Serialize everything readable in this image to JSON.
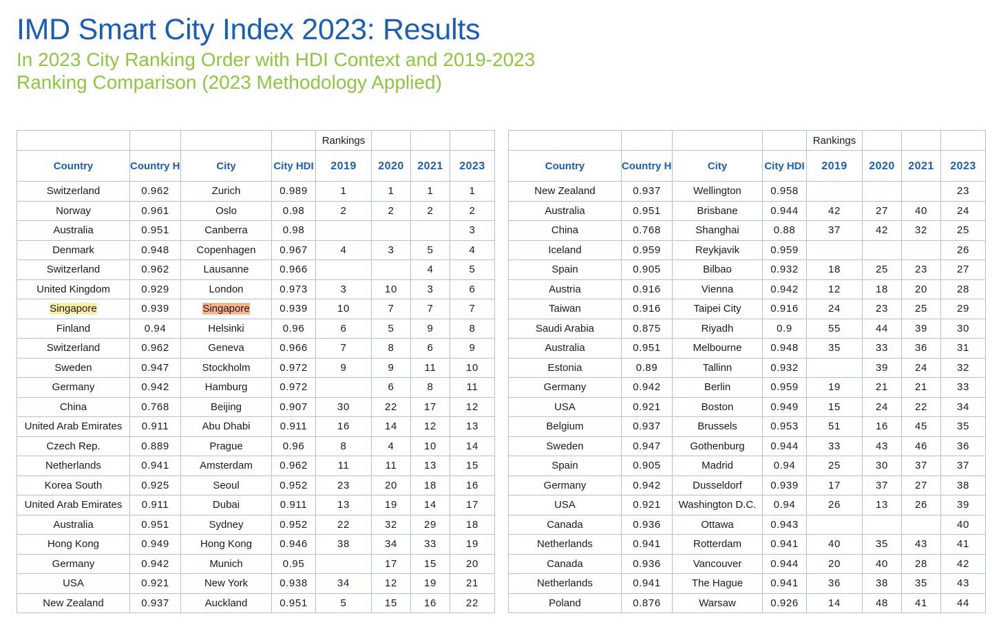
{
  "title": "IMD Smart City Index 2023: Results",
  "subtitle": "In 2023 City Ranking Order with HDI Context and 2019-2023 Ranking Comparison (2023 Methodology Applied)",
  "headers": {
    "rankings": "Rankings",
    "country": "Country",
    "country_hdi": "Country HDI",
    "city": "City",
    "city_hdi": "City HDI",
    "y2019": "2019",
    "y2020": "2020",
    "y2021": "2021",
    "y2023": "2023"
  },
  "highlight_colors": {
    "country": "#fbeea6",
    "city": "#f6b38c"
  },
  "left_rows": [
    {
      "country": "Switzerland",
      "country_hdi": "0.962",
      "city": "Zurich",
      "city_hdi": "0.989",
      "r2019": "1",
      "r2020": "1",
      "r2021": "1",
      "r2023": "1"
    },
    {
      "country": "Norway",
      "country_hdi": "0.961",
      "city": "Oslo",
      "city_hdi": "0.98",
      "r2019": "2",
      "r2020": "2",
      "r2021": "2",
      "r2023": "2"
    },
    {
      "country": "Australia",
      "country_hdi": "0.951",
      "city": "Canberra",
      "city_hdi": "0.98",
      "r2019": "",
      "r2020": "",
      "r2021": "",
      "r2023": "3"
    },
    {
      "country": "Denmark",
      "country_hdi": "0.948",
      "city": "Copenhagen",
      "city_hdi": "0.967",
      "r2019": "4",
      "r2020": "3",
      "r2021": "5",
      "r2023": "4"
    },
    {
      "country": "Switzerland",
      "country_hdi": "0.962",
      "city": "Lausanne",
      "city_hdi": "0.966",
      "r2019": "",
      "r2020": "",
      "r2021": "4",
      "r2023": "5"
    },
    {
      "country": "United Kingdom",
      "country_hdi": "0.929",
      "city": "London",
      "city_hdi": "0.973",
      "r2019": "3",
      "r2020": "10",
      "r2021": "3",
      "r2023": "6"
    },
    {
      "country": "Singapore",
      "country_hdi": "0.939",
      "city": "Singapore",
      "city_hdi": "0.939",
      "r2019": "10",
      "r2020": "7",
      "r2021": "7",
      "r2023": "7",
      "highlight": true
    },
    {
      "country": "Finland",
      "country_hdi": "0.94",
      "city": "Helsinki",
      "city_hdi": "0.96",
      "r2019": "6",
      "r2020": "5",
      "r2021": "9",
      "r2023": "8"
    },
    {
      "country": "Switzerland",
      "country_hdi": "0.962",
      "city": "Geneva",
      "city_hdi": "0.966",
      "r2019": "7",
      "r2020": "8",
      "r2021": "6",
      "r2023": "9"
    },
    {
      "country": "Sweden",
      "country_hdi": "0.947",
      "city": "Stockholm",
      "city_hdi": "0.972",
      "r2019": "9",
      "r2020": "9",
      "r2021": "11",
      "r2023": "10"
    },
    {
      "country": "Germany",
      "country_hdi": "0.942",
      "city": "Hamburg",
      "city_hdi": "0.972",
      "r2019": "",
      "r2020": "6",
      "r2021": "8",
      "r2023": "11"
    },
    {
      "country": "China",
      "country_hdi": "0.768",
      "city": "Beijing",
      "city_hdi": "0.907",
      "r2019": "30",
      "r2020": "22",
      "r2021": "17",
      "r2023": "12"
    },
    {
      "country": "United Arab Emirates",
      "country_hdi": "0.911",
      "city": "Abu Dhabi",
      "city_hdi": "0.911",
      "r2019": "16",
      "r2020": "14",
      "r2021": "12",
      "r2023": "13"
    },
    {
      "country": "Czech Rep.",
      "country_hdi": "0.889",
      "city": "Prague",
      "city_hdi": "0.96",
      "r2019": "8",
      "r2020": "4",
      "r2021": "10",
      "r2023": "14"
    },
    {
      "country": "Netherlands",
      "country_hdi": "0.941",
      "city": "Amsterdam",
      "city_hdi": "0.962",
      "r2019": "11",
      "r2020": "11",
      "r2021": "13",
      "r2023": "15"
    },
    {
      "country": "Korea South",
      "country_hdi": "0.925",
      "city": "Seoul",
      "city_hdi": "0.952",
      "r2019": "23",
      "r2020": "20",
      "r2021": "18",
      "r2023": "16"
    },
    {
      "country": "United Arab Emirates",
      "country_hdi": "0.911",
      "city": "Dubai",
      "city_hdi": "0.911",
      "r2019": "13",
      "r2020": "19",
      "r2021": "14",
      "r2023": "17"
    },
    {
      "country": "Australia",
      "country_hdi": "0.951",
      "city": "Sydney",
      "city_hdi": "0.952",
      "r2019": "22",
      "r2020": "32",
      "r2021": "29",
      "r2023": "18"
    },
    {
      "country": "Hong Kong",
      "country_hdi": "0.949",
      "city": "Hong Kong",
      "city_hdi": "0.946",
      "r2019": "38",
      "r2020": "34",
      "r2021": "33",
      "r2023": "19"
    },
    {
      "country": "Germany",
      "country_hdi": "0.942",
      "city": "Munich",
      "city_hdi": "0.95",
      "r2019": "",
      "r2020": "17",
      "r2021": "15",
      "r2023": "20"
    },
    {
      "country": "USA",
      "country_hdi": "0.921",
      "city": "New York",
      "city_hdi": "0.938",
      "r2019": "34",
      "r2020": "12",
      "r2021": "19",
      "r2023": "21"
    },
    {
      "country": "New Zealand",
      "country_hdi": "0.937",
      "city": "Auckland",
      "city_hdi": "0.951",
      "r2019": "5",
      "r2020": "15",
      "r2021": "16",
      "r2023": "22"
    }
  ],
  "right_rows": [
    {
      "country": "New Zealand",
      "country_hdi": "0.937",
      "city": "Wellington",
      "city_hdi": "0.958",
      "r2019": "",
      "r2020": "",
      "r2021": "",
      "r2023": "23"
    },
    {
      "country": "Australia",
      "country_hdi": "0.951",
      "city": "Brisbane",
      "city_hdi": "0.944",
      "r2019": "42",
      "r2020": "27",
      "r2021": "40",
      "r2023": "24"
    },
    {
      "country": "China",
      "country_hdi": "0.768",
      "city": "Shanghai",
      "city_hdi": "0.88",
      "r2019": "37",
      "r2020": "42",
      "r2021": "32",
      "r2023": "25"
    },
    {
      "country": "Iceland",
      "country_hdi": "0.959",
      "city": "Reykjavik",
      "city_hdi": "0.959",
      "r2019": "",
      "r2020": "",
      "r2021": "",
      "r2023": "26"
    },
    {
      "country": "Spain",
      "country_hdi": "0.905",
      "city": "Bilbao",
      "city_hdi": "0.932",
      "r2019": "18",
      "r2020": "25",
      "r2021": "23",
      "r2023": "27"
    },
    {
      "country": "Austria",
      "country_hdi": "0.916",
      "city": "Vienna",
      "city_hdi": "0.942",
      "r2019": "12",
      "r2020": "18",
      "r2021": "20",
      "r2023": "28"
    },
    {
      "country": "Taiwan",
      "country_hdi": "0.916",
      "city": "Taipei City",
      "city_hdi": "0.916",
      "r2019": "24",
      "r2020": "23",
      "r2021": "25",
      "r2023": "29"
    },
    {
      "country": "Saudi Arabia",
      "country_hdi": "0.875",
      "city": "Riyadh",
      "city_hdi": "0.9",
      "r2019": "55",
      "r2020": "44",
      "r2021": "39",
      "r2023": "30"
    },
    {
      "country": "Australia",
      "country_hdi": "0.951",
      "city": "Melbourne",
      "city_hdi": "0.948",
      "r2019": "35",
      "r2020": "33",
      "r2021": "36",
      "r2023": "31"
    },
    {
      "country": "Estonia",
      "country_hdi": "0.89",
      "city": "Tallinn",
      "city_hdi": "0.932",
      "r2019": "",
      "r2020": "39",
      "r2021": "24",
      "r2023": "32"
    },
    {
      "country": "Germany",
      "country_hdi": "0.942",
      "city": "Berlin",
      "city_hdi": "0.959",
      "r2019": "19",
      "r2020": "21",
      "r2021": "21",
      "r2023": "33"
    },
    {
      "country": "USA",
      "country_hdi": "0.921",
      "city": "Boston",
      "city_hdi": "0.949",
      "r2019": "15",
      "r2020": "24",
      "r2021": "22",
      "r2023": "34"
    },
    {
      "country": "Belgium",
      "country_hdi": "0.937",
      "city": "Brussels",
      "city_hdi": "0.953",
      "r2019": "51",
      "r2020": "16",
      "r2021": "45",
      "r2023": "35"
    },
    {
      "country": "Sweden",
      "country_hdi": "0.947",
      "city": "Gothenburg",
      "city_hdi": "0.944",
      "r2019": "33",
      "r2020": "43",
      "r2021": "46",
      "r2023": "36"
    },
    {
      "country": "Spain",
      "country_hdi": "0.905",
      "city": "Madrid",
      "city_hdi": "0.94",
      "r2019": "25",
      "r2020": "30",
      "r2021": "37",
      "r2023": "37"
    },
    {
      "country": "Germany",
      "country_hdi": "0.942",
      "city": "Dusseldorf",
      "city_hdi": "0.939",
      "r2019": "17",
      "r2020": "37",
      "r2021": "27",
      "r2023": "38"
    },
    {
      "country": "USA",
      "country_hdi": "0.921",
      "city": "Washington D.C.",
      "city_hdi": "0.94",
      "r2019": "26",
      "r2020": "13",
      "r2021": "26",
      "r2023": "39"
    },
    {
      "country": "Canada",
      "country_hdi": "0.936",
      "city": "Ottawa",
      "city_hdi": "0.943",
      "r2019": "",
      "r2020": "",
      "r2021": "",
      "r2023": "40"
    },
    {
      "country": "Netherlands",
      "country_hdi": "0.941",
      "city": "Rotterdam",
      "city_hdi": "0.941",
      "r2019": "40",
      "r2020": "35",
      "r2021": "43",
      "r2023": "41"
    },
    {
      "country": "Canada",
      "country_hdi": "0.936",
      "city": "Vancouver",
      "city_hdi": "0.944",
      "r2019": "20",
      "r2020": "40",
      "r2021": "28",
      "r2023": "42"
    },
    {
      "country": "Netherlands",
      "country_hdi": "0.941",
      "city": "The Hague",
      "city_hdi": "0.941",
      "r2019": "36",
      "r2020": "38",
      "r2021": "35",
      "r2023": "43"
    },
    {
      "country": "Poland",
      "country_hdi": "0.876",
      "city": "Warsaw",
      "city_hdi": "0.926",
      "r2019": "14",
      "r2020": "48",
      "r2021": "41",
      "r2023": "44"
    }
  ]
}
